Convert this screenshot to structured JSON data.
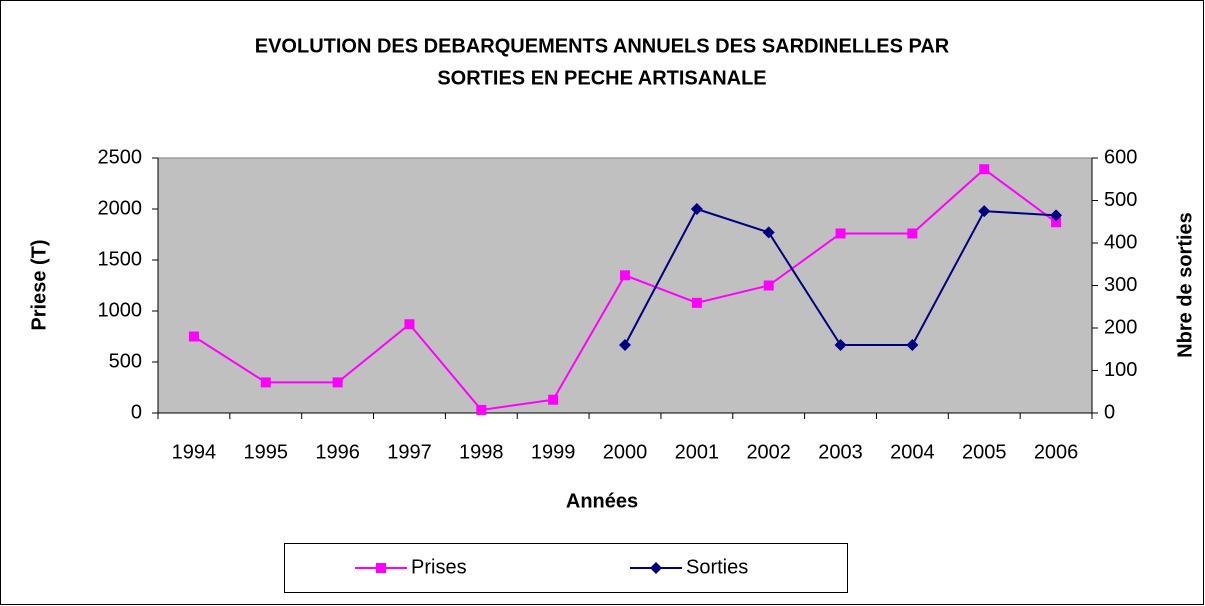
{
  "chart_data": {
    "type": "line",
    "title": [
      "EVOLUTION DES DEBARQUEMENTS ANNUELS DES SARDINELLES PAR",
      "SORTIES EN PECHE ARTISANALE"
    ],
    "x_label": "Années",
    "y_label": "Priese (T)",
    "y2_label": "Nbre de sorties",
    "categories": [
      "1994",
      "1995",
      "1996",
      "1997",
      "1998",
      "1999",
      "2000",
      "2001",
      "2002",
      "2003",
      "2004",
      "2005",
      "2006"
    ],
    "series": [
      {
        "name": "Prises",
        "color": "#ff00ff",
        "marker": "square",
        "values": [
          750,
          300,
          300,
          870,
          30,
          130,
          1350,
          1080,
          1250,
          1760,
          1760,
          2390,
          1870
        ]
      },
      {
        "name": "Sorties",
        "color": "#000080",
        "marker": "diamond",
        "axis": "y2",
        "values": [
          null,
          null,
          null,
          null,
          null,
          null,
          160,
          480,
          425,
          160,
          160,
          475,
          465
        ]
      }
    ],
    "ylim": [
      0,
      2500
    ],
    "yticks": [
      0,
      500,
      1000,
      1500,
      2000,
      2500
    ],
    "y2lim": [
      0,
      600
    ],
    "y2ticks": [
      0,
      100,
      200,
      300,
      400,
      500,
      600
    ],
    "grid": false,
    "background": "#c0c0c0",
    "legend": "bottom"
  }
}
